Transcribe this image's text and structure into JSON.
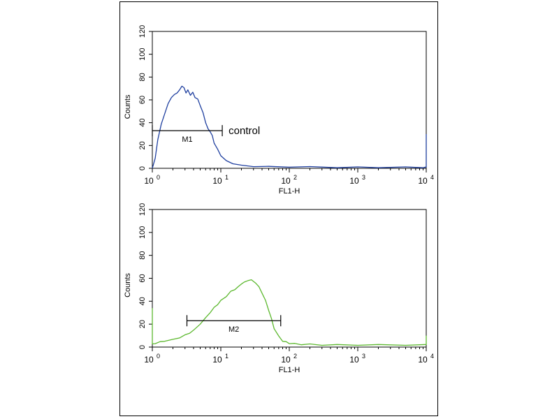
{
  "chart_data": [
    {
      "type": "line",
      "xlabel": "FL1-H",
      "ylabel": "Counts",
      "x_scale": "log",
      "xlim": [
        1,
        10000
      ],
      "ylim": [
        0,
        120
      ],
      "y_ticks": [
        "0",
        "20",
        "40",
        "60",
        "80",
        "100",
        "120"
      ],
      "x_tick_labels": [
        {
          "base": "10",
          "exp": "0"
        },
        {
          "base": "10",
          "exp": "1"
        },
        {
          "base": "10",
          "exp": "2"
        },
        {
          "base": "10",
          "exp": "3"
        },
        {
          "base": "10",
          "exp": "4"
        }
      ],
      "grid": false,
      "color": "#1f3f9f",
      "series": [
        {
          "x": [
            1,
            1.1,
            1.2,
            1.35,
            1.5,
            1.7,
            1.9,
            2.1,
            2.3,
            2.5,
            2.7,
            2.9,
            3.1,
            3.3,
            3.6,
            3.9,
            4.2,
            4.6,
            5,
            5.5,
            6,
            6.5,
            7,
            7.5,
            8,
            9,
            10,
            12,
            15,
            20,
            30,
            50,
            100,
            200,
            500,
            1000,
            2000,
            5000,
            9000,
            10000,
            10000
          ],
          "y": [
            0,
            8,
            25,
            38,
            47,
            56,
            62,
            64,
            66,
            68,
            72,
            70,
            66,
            68,
            64,
            66,
            62,
            60,
            55,
            48,
            40,
            34,
            32,
            28,
            22,
            16,
            11,
            6,
            4,
            2,
            1.5,
            1,
            1,
            0.8,
            0.5,
            0.5,
            0.5,
            0.5,
            0.5,
            0.5,
            30
          ]
        }
      ],
      "markers": [
        {
          "label": "M1",
          "x1": 1,
          "x2": 10.5,
          "y": 33
        }
      ],
      "annotations": [
        {
          "text": "control",
          "x": 13,
          "y": 30
        }
      ]
    },
    {
      "type": "line",
      "xlabel": "FL1-H",
      "ylabel": "Counts",
      "x_scale": "log",
      "xlim": [
        1,
        10000
      ],
      "ylim": [
        0,
        120
      ],
      "y_ticks": [
        "0",
        "20",
        "40",
        "60",
        "80",
        "100",
        "120"
      ],
      "x_tick_labels": [
        {
          "base": "10",
          "exp": "0"
        },
        {
          "base": "10",
          "exp": "1"
        },
        {
          "base": "10",
          "exp": "2"
        },
        {
          "base": "10",
          "exp": "3"
        },
        {
          "base": "10",
          "exp": "4"
        }
      ],
      "grid": false,
      "color": "#5cb82e",
      "series": [
        {
          "x": [
            1,
            1,
            1.1,
            1.3,
            1.5,
            2,
            2.5,
            3,
            3.5,
            4,
            5,
            6,
            7,
            8,
            9,
            10,
            12,
            14,
            16,
            18,
            20,
            22,
            25,
            28,
            32,
            36,
            40,
            45,
            50,
            55,
            60,
            70,
            80,
            90,
            100,
            120,
            150,
            200,
            300,
            500,
            1000,
            2000,
            5000,
            10000,
            10000
          ],
          "y": [
            34,
            2,
            3,
            4,
            5,
            6,
            8,
            10,
            12,
            14,
            20,
            25,
            30,
            34,
            37,
            40,
            44,
            48,
            50,
            52,
            55,
            56,
            58,
            58,
            56,
            52,
            47,
            40,
            32,
            24,
            16,
            9,
            5,
            4,
            3,
            2.5,
            2,
            2,
            1.5,
            1.5,
            1.5,
            1.5,
            1.5,
            1.5,
            10
          ]
        }
      ],
      "markers": [
        {
          "label": "M2",
          "x1": 3.2,
          "x2": 75,
          "y": 23
        }
      ],
      "annotations": []
    }
  ]
}
